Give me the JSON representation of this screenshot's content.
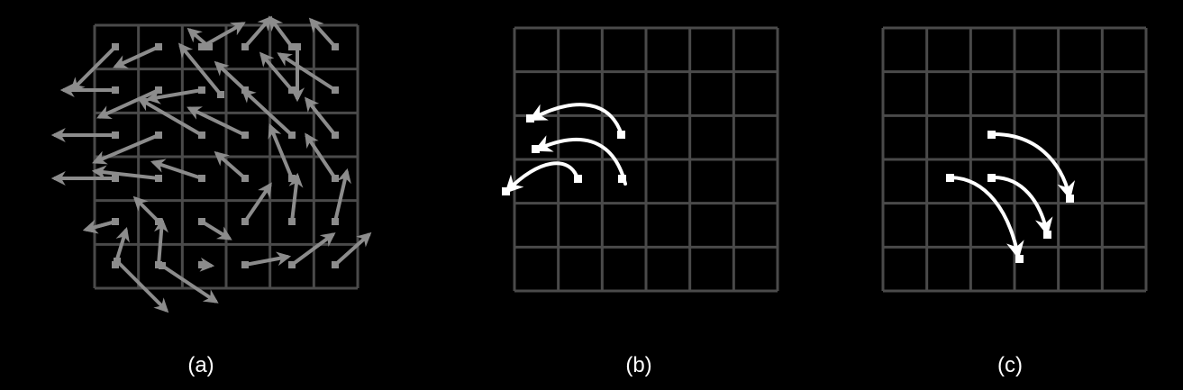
{
  "panels": [
    {
      "label": "(a)"
    },
    {
      "label": "(b)"
    },
    {
      "label": "(c)"
    }
  ],
  "grid": {
    "rows": 6,
    "cols": 6,
    "line_color": "#4a4a4a"
  },
  "colors": {
    "field_arrow": "#8c8c8c",
    "trajectory": "#ffffff",
    "background": "#000000"
  }
}
